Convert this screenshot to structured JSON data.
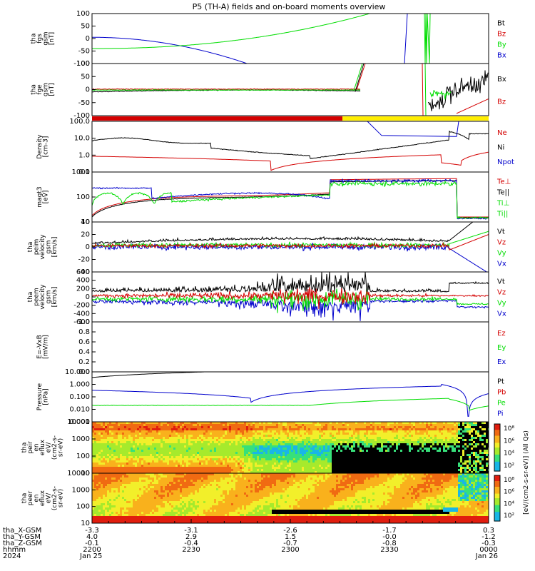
{
  "title": "P5 (TH-A) fields and on-board moments overview",
  "colors": {
    "black": "#000000",
    "red": "#d40000",
    "green": "#00dd00",
    "blue": "#0000cc",
    "yellow": "#ffee00"
  },
  "chart_data": {
    "type": "line",
    "title": "P5 (TH-A) fields and on-board moments overview",
    "x_axis": {
      "ticks_hhmm": [
        "2200",
        "2230",
        "2300",
        "2330",
        "0000"
      ],
      "rows": [
        {
          "label": "tha_X-GSM",
          "values": [
            "-3.3",
            "-3.1",
            "-2.6",
            "-1.7",
            "0.3"
          ]
        },
        {
          "label": "tha_Y-GSM",
          "values": [
            "4.0",
            "2.9",
            "1.5",
            "-0.0",
            "-1.2"
          ]
        },
        {
          "label": "tha_Z-GSM",
          "values": [
            "-0.1",
            "-0.4",
            "-0.7",
            "-0.8",
            "-0.3"
          ]
        },
        {
          "label": "hhmm",
          "values": [
            "2200",
            "2230",
            "2300",
            "2330",
            "0000"
          ]
        },
        {
          "label": "2024",
          "values": [
            "Jan 25",
            "",
            "",
            "",
            "Jan 26"
          ]
        }
      ]
    },
    "panels": [
      {
        "id": "fgs",
        "ylabel": [
          "tha",
          "fgs",
          "gsm",
          "[nT]"
        ],
        "ticks": [
          "100",
          "50",
          "0",
          "-50",
          "-100"
        ],
        "ylim": [
          -100,
          100
        ],
        "legend": [
          {
            "name": "Bt",
            "color": "#000000"
          },
          {
            "name": "Bz",
            "color": "#d40000"
          },
          {
            "name": "By",
            "color": "#00dd00"
          },
          {
            "name": "Bx",
            "color": "#0000cc"
          }
        ]
      },
      {
        "id": "fge",
        "ylabel": [
          "tha",
          "fge",
          "gsm",
          "[nT]"
        ],
        "ticks": [
          "100",
          "50",
          "0",
          "-50",
          "-100"
        ],
        "ylim": [
          -120,
          120
        ],
        "legend": [
          {
            "name": "Bx",
            "color": "#000000"
          },
          {
            "name": "Bz",
            "color": "#d40000"
          }
        ]
      },
      {
        "id": "density",
        "ylabel": [
          "Density",
          "[cm-3]"
        ],
        "ticks": [
          "100.0",
          "10.0",
          "1.0",
          "0.1"
        ],
        "scale": "log",
        "legend": [
          {
            "name": "Ne",
            "color": "#d40000"
          },
          {
            "name": "Ni",
            "color": "#000000"
          },
          {
            "name": "Npot",
            "color": "#0000cc"
          }
        ]
      },
      {
        "id": "temp",
        "ylabel": [
          "magt3",
          "[eV]"
        ],
        "ticks": [
          "1000",
          "100",
          "10"
        ],
        "scale": "log",
        "legend": [
          {
            "name": "Te⊥",
            "color": "#d40000"
          },
          {
            "name": "Te||",
            "color": "#000000"
          },
          {
            "name": "Ti⊥",
            "color": "#00dd00"
          },
          {
            "name": "Ti||",
            "color": "#00dd00"
          }
        ]
      },
      {
        "id": "peim",
        "ylabel": [
          "tha",
          "peim",
          "velocity",
          "gsm",
          "[km/s]"
        ],
        "ticks": [
          "40",
          "20",
          "0",
          "-20",
          "-40"
        ],
        "ylim": [
          -40,
          40
        ],
        "legend": [
          {
            "name": "Vt",
            "color": "#000000"
          },
          {
            "name": "Vz",
            "color": "#d40000"
          },
          {
            "name": "Vy",
            "color": "#00dd00"
          },
          {
            "name": "Vx",
            "color": "#0000cc"
          }
        ]
      },
      {
        "id": "peem",
        "ylabel": [
          "tha",
          "peem",
          "velocity",
          "gsm",
          "[km/s]"
        ],
        "ticks": [
          "600",
          "400",
          "200",
          "0",
          "-200",
          "-400",
          "-600"
        ],
        "ylim": [
          -600,
          600
        ],
        "legend": [
          {
            "name": "Vt",
            "color": "#000000"
          },
          {
            "name": "Vz",
            "color": "#d40000"
          },
          {
            "name": "Vy",
            "color": "#00dd00"
          },
          {
            "name": "Vx",
            "color": "#0000cc"
          }
        ]
      },
      {
        "id": "efield",
        "ylabel": [
          "E=-VxB",
          "[mV/m]"
        ],
        "ticks": [
          "1.0",
          "0.8",
          "0.6",
          "0.4",
          "0.2",
          "0.0"
        ],
        "ylim": [
          0,
          1
        ],
        "legend": [
          {
            "name": "Ez",
            "color": "#d40000"
          },
          {
            "name": "Ey",
            "color": "#00dd00"
          },
          {
            "name": "Ex",
            "color": "#0000cc"
          }
        ]
      },
      {
        "id": "pressure",
        "ylabel": [
          "Pressure",
          "[nPa]"
        ],
        "ticks": [
          "10.000",
          "1.000",
          "0.100",
          "0.010",
          "0.001"
        ],
        "scale": "log",
        "legend": [
          {
            "name": "Pt",
            "color": "#000000"
          },
          {
            "name": "Pb",
            "color": "#d40000"
          },
          {
            "name": "Pe",
            "color": "#00dd00"
          },
          {
            "name": "Pi",
            "color": "#0000cc"
          }
        ]
      },
      {
        "id": "peir",
        "ylabel": [
          "tha",
          "peir",
          "en",
          "eflux",
          "eV/",
          "(cm2-s-",
          "sr-eV)"
        ],
        "ticks": [
          "10000",
          "1000",
          "100",
          "10"
        ],
        "scale": "log",
        "type": "heatmap"
      },
      {
        "id": "peer",
        "ylabel": [
          "tha",
          "peer",
          "en",
          "eflux",
          "eV/",
          "(cm2-s-",
          "sr-eV)"
        ],
        "ticks": [
          "10000",
          "1000",
          "100",
          "10"
        ],
        "scale": "log",
        "type": "heatmap"
      }
    ],
    "colorbar": {
      "label": "[eV/(cm2-s-sr-eV)] (All Qs)",
      "ticks": [
        "10⁸",
        "10⁶",
        "10⁴",
        "10²",
        "10⁸",
        "10⁶",
        "10⁴",
        "10²"
      ]
    }
  }
}
